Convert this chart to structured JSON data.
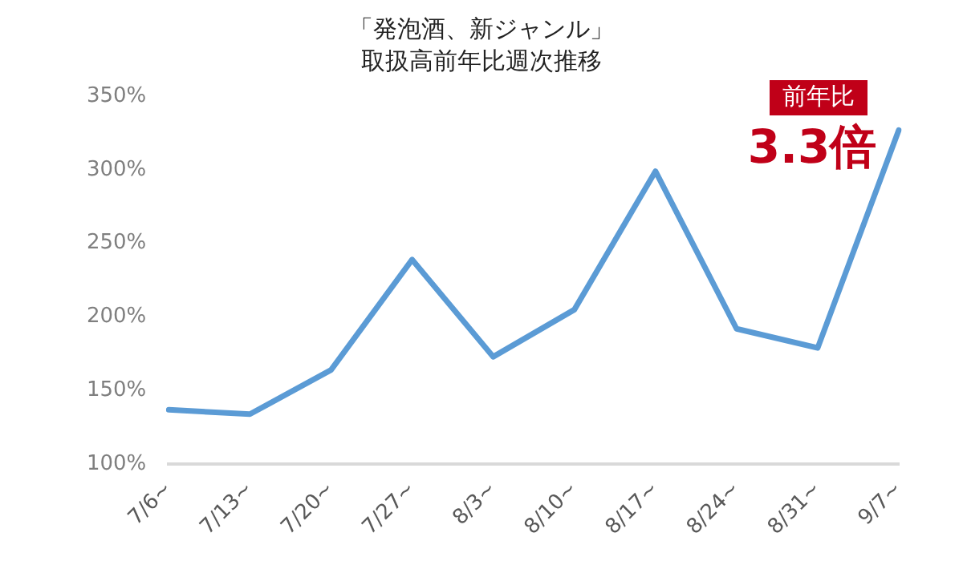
{
  "chart_data": {
    "type": "line",
    "title": "「発泡酒、新ジャンル」",
    "subtitle": "取扱高前年比週次推移",
    "categories": [
      "7/6~",
      "7/13~",
      "7/20~",
      "7/27~",
      "8/3~",
      "8/10~",
      "8/17~",
      "8/24~",
      "8/31~",
      "9/7~"
    ],
    "series": [
      {
        "color": "#5b9bd5",
        "values": [
          137,
          134,
          164,
          239,
          173,
          205,
          299,
          192,
          179,
          327
        ]
      }
    ],
    "ylim": [
      100,
      350
    ],
    "yticks": [
      {
        "value": 100,
        "label": "100%"
      },
      {
        "value": 150,
        "label": "150%"
      },
      {
        "value": 200,
        "label": "200%"
      },
      {
        "value": 250,
        "label": "250%"
      },
      {
        "value": 300,
        "label": "300%"
      },
      {
        "value": 350,
        "label": "350%"
      }
    ],
    "annotations": [
      "前年比",
      "3.3倍"
    ],
    "grid": false,
    "legend": false,
    "marker": "none",
    "line_style": "solid"
  }
}
